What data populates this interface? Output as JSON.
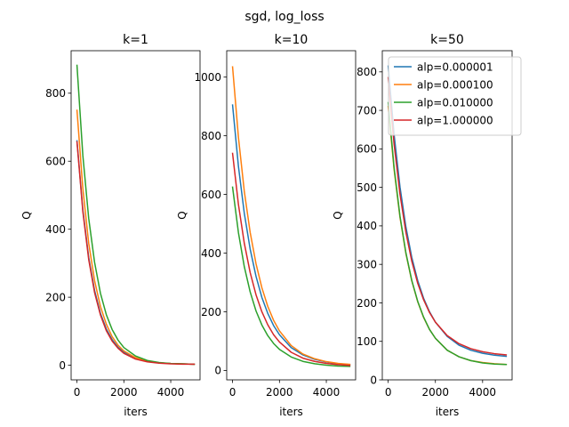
{
  "figure": {
    "suptitle": "sgd, log_loss",
    "colors": [
      "#1f77b4",
      "#ff7f0e",
      "#2ca02c",
      "#d62728"
    ]
  },
  "chart_data": [
    {
      "type": "line",
      "title": "k=1",
      "xlabel": "iters",
      "ylabel": "Q",
      "xlim": [
        -250,
        5250
      ],
      "ylim": [
        -43,
        925
      ],
      "xticks": [
        0,
        2000,
        4000
      ],
      "yticks": [
        0,
        200,
        400,
        600,
        800
      ],
      "legend": null,
      "x": [
        0,
        250,
        500,
        750,
        1000,
        1250,
        1500,
        1750,
        2000,
        2500,
        3000,
        3500,
        4000,
        4500,
        5000
      ],
      "series": [
        {
          "values": [
            660,
            457,
            317,
            220,
            153,
            107,
            75,
            53,
            38,
            20,
            11,
            7,
            5,
            4,
            3
          ]
        },
        {
          "values": [
            750,
            519,
            359,
            249,
            173,
            121,
            84,
            59,
            42,
            22,
            12,
            7,
            5,
            4,
            3
          ]
        },
        {
          "values": [
            882,
            617,
            432,
            303,
            212,
            149,
            105,
            74,
            52,
            27,
            14,
            8,
            5,
            4,
            3
          ]
        },
        {
          "values": [
            657,
            452,
            311,
            214,
            148,
            102,
            71,
            50,
            35,
            18,
            10,
            6,
            4,
            3,
            3
          ]
        }
      ]
    },
    {
      "type": "line",
      "title": "k=10",
      "xlabel": "iters",
      "ylabel": "Q",
      "xlim": [
        -250,
        5250
      ],
      "ylim": [
        -32,
        1090
      ],
      "xticks": [
        0,
        2000,
        4000
      ],
      "yticks": [
        0,
        200,
        400,
        600,
        800,
        1000
      ],
      "legend": null,
      "x": [
        0,
        250,
        500,
        750,
        1000,
        1250,
        1500,
        1750,
        2000,
        2500,
        3000,
        3500,
        4000,
        4500,
        5000
      ],
      "series": [
        {
          "values": [
            905,
            696,
            536,
            414,
            321,
            249,
            195,
            153,
            122,
            78,
            53,
            38,
            29,
            23,
            20
          ]
        },
        {
          "values": [
            1035,
            795,
            611,
            471,
            364,
            282,
            219,
            171,
            135,
            85,
            56,
            40,
            30,
            24,
            21
          ]
        },
        {
          "values": [
            625,
            470,
            354,
            268,
            203,
            155,
            119,
            92,
            72,
            46,
            31,
            23,
            18,
            15,
            14
          ]
        },
        {
          "values": [
            740,
            566,
            434,
            334,
            258,
            200,
            156,
            122,
            97,
            62,
            42,
            31,
            24,
            20,
            17
          ]
        }
      ]
    },
    {
      "type": "line",
      "title": "k=50",
      "xlabel": "iters",
      "ylabel": "Q",
      "xlim": [
        -250,
        5250
      ],
      "ylim": [
        0,
        855
      ],
      "xticks": [
        0,
        2000,
        4000
      ],
      "yticks": [
        0,
        100,
        200,
        300,
        400,
        500,
        600,
        700,
        800
      ],
      "legend": {
        "placement": "upper-right",
        "labels": [
          "alp=0.000001",
          "alp=0.000100",
          "alp=0.010000",
          "alp=1.000000"
        ]
      },
      "x": [
        0,
        250,
        500,
        750,
        1000,
        1250,
        1500,
        1750,
        2000,
        2500,
        3000,
        3500,
        4000,
        4500,
        5000
      ],
      "series": [
        {
          "values": [
            815,
            637,
            501,
            397,
            318,
            258,
            212,
            177,
            150,
            113,
            90,
            77,
            69,
            64,
            61
          ]
        },
        {
          "values": [
            710,
            546,
            422,
            328,
            257,
            203,
            162,
            131,
            108,
            77,
            60,
            50,
            45,
            42,
            40
          ]
        },
        {
          "values": [
            720,
            551,
            425,
            330,
            258,
            204,
            163,
            131,
            108,
            77,
            60,
            50,
            44,
            41,
            40
          ]
        },
        {
          "values": [
            785,
            612,
            482,
            383,
            308,
            251,
            208,
            175,
            150,
            115,
            94,
            81,
            73,
            68,
            65
          ]
        }
      ]
    }
  ]
}
